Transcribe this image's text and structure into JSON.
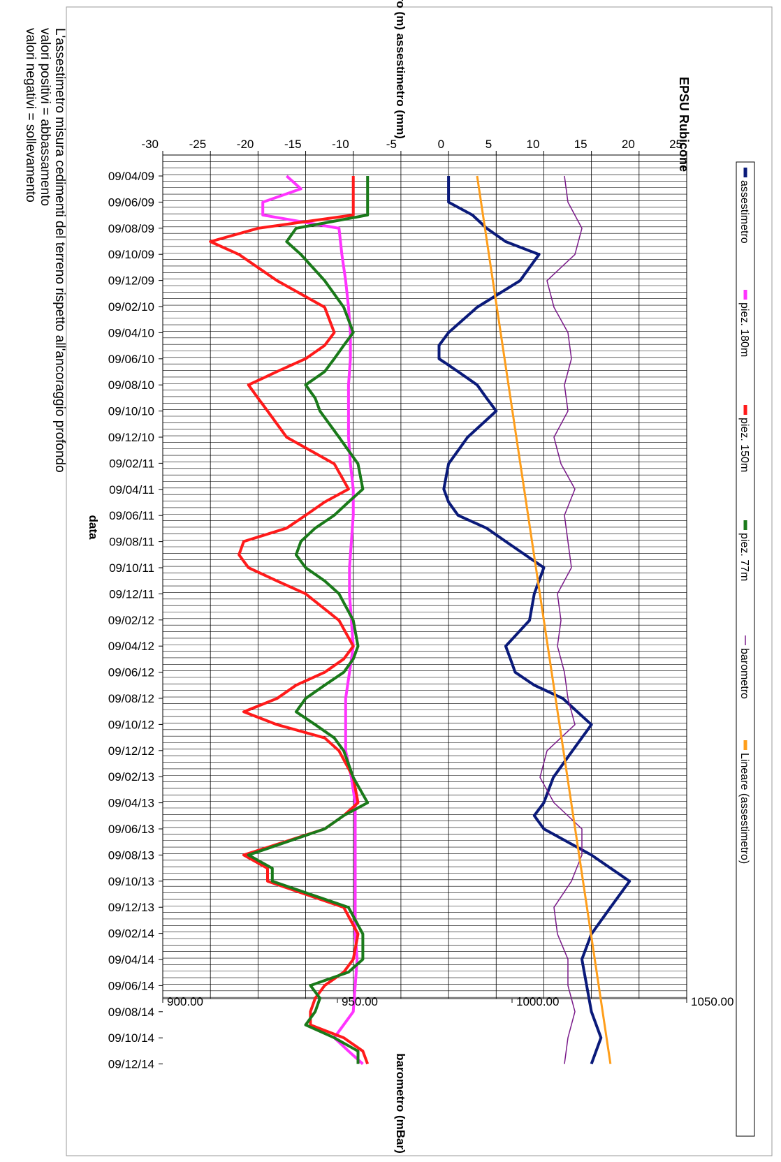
{
  "chart_data": {
    "type": "line",
    "title": "EPSU Rubicone",
    "xlabel": "data",
    "ylabel_left": "piezometro (m) assestimetro (mm)",
    "ylabel_right": "barometro (mBar)",
    "ylim_left": [
      -30,
      25
    ],
    "ylim_right": [
      900,
      1050
    ],
    "y_ticks_left": [
      "-30",
      "-25",
      "-20",
      "-15",
      "-10",
      "-5",
      "0",
      "5",
      "10",
      "15",
      "20",
      "25"
    ],
    "y_ticks_right": [
      "900.00",
      "950.00",
      "1000.00",
      "1050.00"
    ],
    "x_ticks": [
      "09/04/09",
      "09/06/09",
      "09/08/09",
      "09/10/09",
      "09/12/09",
      "09/02/10",
      "09/04/10",
      "09/06/10",
      "09/08/10",
      "09/10/10",
      "09/12/10",
      "09/02/11",
      "09/04/11",
      "09/06/11",
      "09/08/11",
      "09/10/11",
      "09/12/11",
      "09/02/12",
      "09/04/12",
      "09/06/12",
      "09/08/12",
      "09/10/12",
      "09/12/12",
      "09/02/13",
      "09/04/13",
      "09/06/13",
      "09/08/13",
      "09/10/13",
      "09/12/13",
      "09/02/14",
      "09/04/14",
      "09/06/14",
      "09/08/14",
      "09/10/14",
      "09/12/14"
    ],
    "grid": true,
    "legend_position": "right",
    "colors": {
      "assestimetro": "#0a1a7a",
      "piez180": "#ff33ff",
      "piez150": "#ff1a1a",
      "piez77": "#1a7a1a",
      "barometro": "#7a1a8a",
      "lineare": "#ff9e1a"
    },
    "series": [
      {
        "name": "assestimetro",
        "axis": "left",
        "key": "assestimetro",
        "x": [
          "09/04/09",
          "09/06/09",
          "09/07/09",
          "09/08/09",
          "09/09/09",
          "09/10/09",
          "09/12/09",
          "09/02/10",
          "09/04/10",
          "09/05/10",
          "09/06/10",
          "09/07/10",
          "09/08/10",
          "09/09/10",
          "09/10/10",
          "09/12/10",
          "09/02/11",
          "09/04/11",
          "09/05/11",
          "09/06/11",
          "09/07/11",
          "09/08/11",
          "09/10/11",
          "09/12/11",
          "09/02/12",
          "09/04/12",
          "09/05/12",
          "09/06/12",
          "09/07/12",
          "09/08/12",
          "09/10/12",
          "09/12/12",
          "09/02/13",
          "09/04/13",
          "09/05/13",
          "09/06/13",
          "09/08/13",
          "09/10/13",
          "09/12/13",
          "09/02/14",
          "09/04/14",
          "09/06/14",
          "09/08/14",
          "09/10/14",
          "09/12/14"
        ],
        "y": [
          0,
          0,
          2.5,
          4,
          6,
          9.5,
          7.5,
          3,
          0,
          -1,
          -1,
          1,
          3,
          4,
          5,
          2,
          0,
          -0.5,
          0,
          1,
          4,
          6,
          10,
          9,
          8.5,
          6,
          6.5,
          7,
          9,
          12,
          15,
          13,
          11,
          10,
          9,
          10,
          15,
          19,
          17,
          15,
          14,
          14.5,
          15,
          16,
          15
        ]
      },
      {
        "name": "piez. 180m",
        "axis": "left",
        "key": "piez180",
        "x": [
          "09/04/09",
          "09/05/09",
          "09/06/09",
          "09/07/09",
          "09/08/09",
          "09/10/09",
          "09/12/09",
          "09/02/10",
          "09/04/10",
          "09/06/10",
          "09/08/10",
          "09/10/10",
          "09/12/10",
          "09/02/11",
          "09/04/11",
          "09/06/11",
          "09/08/11",
          "09/10/11",
          "09/12/11",
          "09/02/12",
          "09/04/12",
          "09/06/12",
          "09/08/12",
          "09/10/12",
          "09/12/12",
          "09/02/13",
          "09/04/13",
          "09/06/13",
          "09/08/13",
          "09/10/13",
          "09/12/13",
          "09/02/14",
          "09/04/14",
          "09/06/14",
          "09/08/14",
          "09/10/14",
          "09/11/14",
          "09/12/14"
        ],
        "y": [
          -17,
          -15.5,
          -19.5,
          -19.5,
          -11.5,
          -11.2,
          -10.8,
          -10.5,
          -10.3,
          -10.3,
          -10.5,
          -10.5,
          -10.5,
          -10.3,
          -10,
          -10,
          -10.2,
          -10.4,
          -10.4,
          -10.2,
          -10,
          -10.4,
          -10.8,
          -10.8,
          -10.8,
          -10.2,
          -9.8,
          -9.8,
          -9.8,
          -9.8,
          -9.8,
          -9.8,
          -9.6,
          -9.8,
          -10,
          -12,
          -10.5,
          -9
        ]
      },
      {
        "name": "piez. 150m",
        "axis": "left",
        "key": "piez150",
        "x": [
          "09/04/09",
          "09/06/09",
          "09/07/09",
          "09/08/09",
          "09/09/09",
          "09/10/09",
          "09/12/09",
          "09/02/10",
          "09/04/10",
          "09/05/10",
          "09/06/10",
          "09/07/10",
          "09/08/10",
          "09/09/10",
          "09/10/10",
          "09/12/10",
          "09/02/11",
          "09/04/11",
          "09/05/11",
          "09/06/11",
          "09/07/11",
          "09/08/11",
          "09/09/11",
          "09/10/11",
          "09/11/11",
          "09/12/11",
          "09/02/12",
          "09/04/12",
          "09/05/12",
          "09/06/12",
          "09/07/12",
          "09/08/12",
          "09/09/12",
          "09/10/12",
          "09/11/12",
          "09/12/12",
          "09/02/13",
          "09/04/13",
          "09/05/13",
          "09/06/13",
          "09/08/13",
          "09/09/13",
          "09/10/13",
          "09/12/13",
          "09/02/14",
          "09/04/14",
          "09/05/14",
          "09/06/14",
          "09/07/14",
          "09/08/14",
          "09/09/14",
          "09/10/14",
          "09/11/14",
          "09/12/14"
        ],
        "y": [
          -10,
          -10,
          -10,
          -20,
          -25,
          -22,
          -18,
          -13,
          -12,
          -13,
          -15,
          -18,
          -21,
          -20,
          -19,
          -17,
          -12,
          -10.5,
          -13,
          -15,
          -17,
          -21.5,
          -22,
          -21,
          -18,
          -15,
          -11.5,
          -10,
          -11,
          -13,
          -16,
          -18,
          -21.5,
          -18,
          -13,
          -11.5,
          -10,
          -9.5,
          -11,
          -13,
          -21.5,
          -19,
          -19,
          -11,
          -9.5,
          -10,
          -11,
          -13,
          -14,
          -14.5,
          -14.5,
          -11,
          -9,
          -8.5
        ]
      },
      {
        "name": "piez. 77m",
        "axis": "left",
        "key": "piez77",
        "x": [
          "09/04/09",
          "09/06/09",
          "09/07/09",
          "09/08/09",
          "09/09/09",
          "09/10/09",
          "09/12/09",
          "09/02/10",
          "09/04/10",
          "09/05/10",
          "09/06/10",
          "09/07/10",
          "09/08/10",
          "09/09/10",
          "09/10/10",
          "09/12/10",
          "09/02/11",
          "09/04/11",
          "09/05/11",
          "09/06/11",
          "09/07/11",
          "09/08/11",
          "09/09/11",
          "09/10/11",
          "09/11/11",
          "09/12/11",
          "09/02/12",
          "09/04/12",
          "09/05/12",
          "09/06/12",
          "09/07/12",
          "09/08/12",
          "09/09/12",
          "09/10/12",
          "09/11/12",
          "09/12/12",
          "09/02/13",
          "09/04/13",
          "09/05/13",
          "09/06/13",
          "09/08/13",
          "09/09/13",
          "09/10/13",
          "09/12/13",
          "09/02/14",
          "09/04/14",
          "09/05/14",
          "09/06/14",
          "09/07/14",
          "09/08/14",
          "09/09/14",
          "09/10/14",
          "09/11/14",
          "09/12/14"
        ],
        "y": [
          -8.5,
          -8.5,
          -8.5,
          -16,
          -17,
          -15.5,
          -13,
          -11,
          -10,
          -11,
          -12,
          -13,
          -15,
          -14,
          -13.5,
          -11.5,
          -9.5,
          -9,
          -10.5,
          -12,
          -14,
          -15.5,
          -16,
          -15,
          -13,
          -11.5,
          -10,
          -9.5,
          -10,
          -11,
          -13,
          -15,
          -16,
          -14,
          -12,
          -11,
          -10,
          -8.5,
          -11,
          -13,
          -21,
          -18.5,
          -18.5,
          -10.5,
          -9,
          -9,
          -10.5,
          -14.5,
          -13.5,
          -14,
          -15,
          -12,
          -9.5,
          -9.5
        ]
      },
      {
        "name": "barometro",
        "axis": "right",
        "key": "barometro",
        "x": [
          "09/04/09",
          "09/06/09",
          "09/08/09",
          "09/10/09",
          "09/12/09",
          "09/02/10",
          "09/04/10",
          "09/06/10",
          "09/08/10",
          "09/10/10",
          "09/12/10",
          "09/02/11",
          "09/04/11",
          "09/06/11",
          "09/08/11",
          "09/10/11",
          "09/12/11",
          "09/02/12",
          "09/04/12",
          "09/06/12",
          "09/08/12",
          "09/10/12",
          "09/12/12",
          "09/02/13",
          "09/04/13",
          "09/06/13",
          "09/08/13",
          "09/10/13",
          "09/12/13",
          "09/02/14",
          "09/04/14",
          "09/06/14",
          "09/08/14",
          "09/10/14",
          "09/12/14"
        ],
        "y": [
          1015,
          1016,
          1020,
          1018,
          1010,
          1012,
          1016,
          1017,
          1015,
          1016,
          1012,
          1014,
          1018,
          1015,
          1016,
          1017,
          1013,
          1014,
          1013,
          1015,
          1016,
          1018,
          1010,
          1008,
          1012,
          1020,
          1020,
          1017,
          1012,
          1013,
          1016,
          1016,
          1018,
          1016,
          1015
        ]
      },
      {
        "name": "Lineare (assestimetro)",
        "axis": "left",
        "key": "lineare",
        "x": [
          "09/04/09",
          "09/12/14"
        ],
        "y": [
          3,
          17
        ]
      }
    ],
    "annotations": [
      "L'assestimetro misura cedimenti del terreno rispetto all'ancoraggio profondo",
      "valori positivi = abbassamento",
      "valori negativi = sollevamento"
    ]
  }
}
